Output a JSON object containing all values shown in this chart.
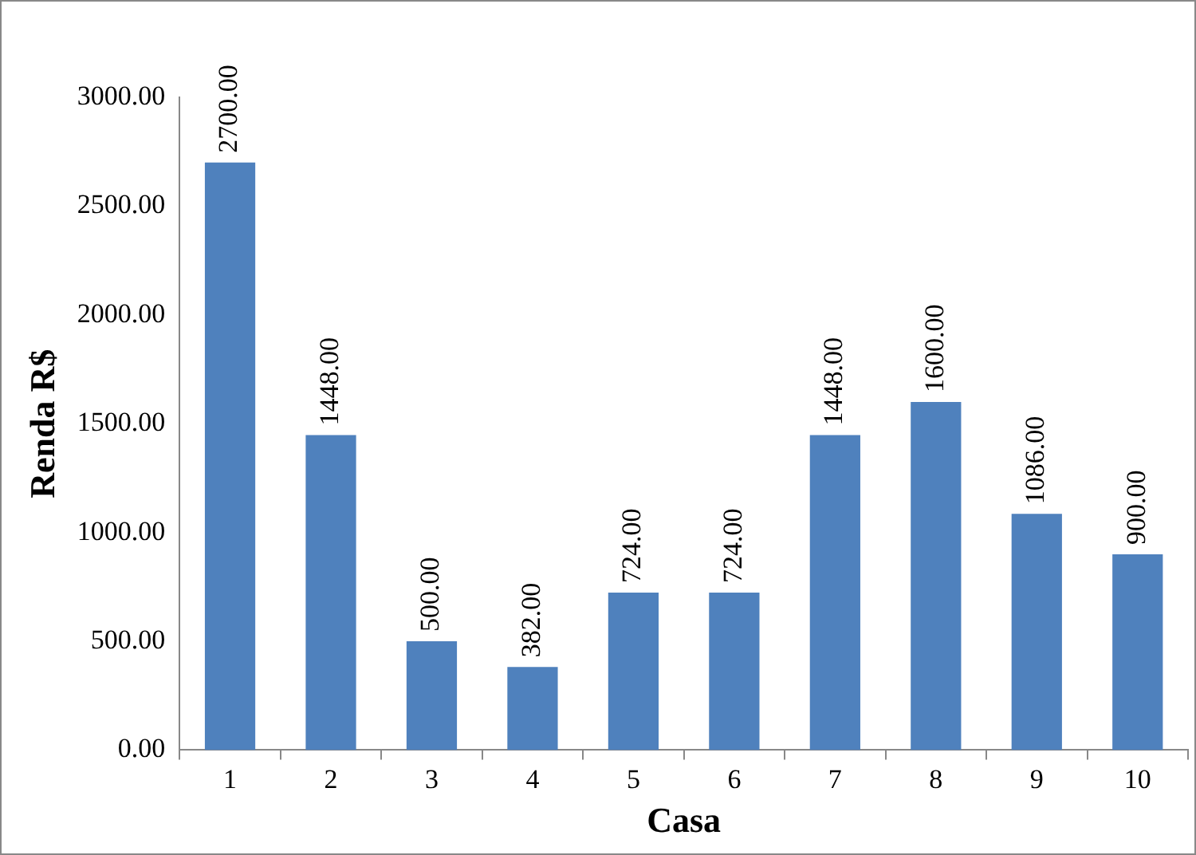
{
  "chart_data": {
    "type": "bar",
    "xlabel": "Casa",
    "ylabel": "Renda R$",
    "categories": [
      "1",
      "2",
      "3",
      "4",
      "5",
      "6",
      "7",
      "8",
      "9",
      "10"
    ],
    "values": [
      2700,
      1448,
      500,
      382,
      724,
      724,
      1448,
      1600,
      1086,
      900
    ],
    "color": "#4f81bd",
    "value_labels": [
      "2700.00",
      "1448.00",
      "500.00",
      "382.00",
      "724.00",
      "724.00",
      "1448.00",
      "1600.00",
      "1086.00",
      "900.00"
    ],
    "ylim": [
      0,
      3000
    ],
    "yticks": [
      {
        "value": 0,
        "label": "0.00"
      },
      {
        "value": 500,
        "label": "500.00"
      },
      {
        "value": 1000,
        "label": "1000.00"
      },
      {
        "value": 1500,
        "label": "1500.00"
      },
      {
        "value": 2000,
        "label": "2000.00"
      },
      {
        "value": 2500,
        "label": "2500.00"
      },
      {
        "value": 3000,
        "label": "3000.00"
      }
    ],
    "grid": false,
    "legend": false
  }
}
